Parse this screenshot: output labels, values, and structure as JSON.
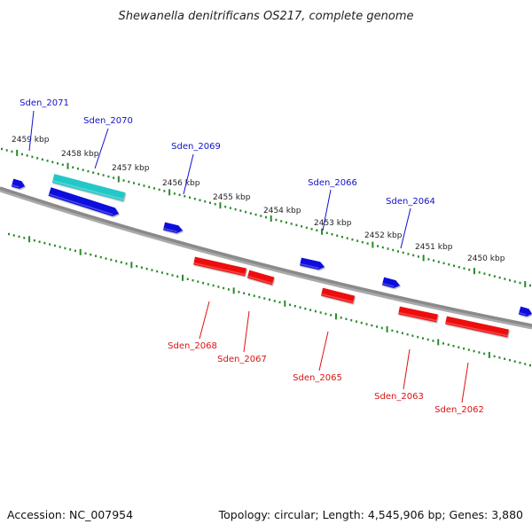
{
  "title": "Shewanella denitrificans OS217, complete genome",
  "accession": "Accession: NC_007954",
  "topology": "Topology: circular; Length: 4,545,906 bp; Genes: 3,880",
  "colors": {
    "backbone": "#808080",
    "tick": "#2a8a2a",
    "forward_gene": "#1010dd",
    "reverse_gene": "#ee1111",
    "highlight_gene": "#22c8c8",
    "forward_label": "#1010cc",
    "reverse_label": "#dd1111",
    "scale_label": "#222222"
  },
  "scale_labels": [
    "2459 kbp",
    "2458 kbp",
    "2457 kbp",
    "2456 kbp",
    "2455 kbp",
    "2454 kbp",
    "2453 kbp",
    "2452 kbp",
    "2451 kbp",
    "2450 kbp"
  ],
  "forward_genes": [
    "Sden_2071",
    "Sden_2070",
    "Sden_2069",
    "Sden_2066",
    "Sden_2064"
  ],
  "reverse_genes": [
    "Sden_2068",
    "Sden_2067",
    "Sden_2065",
    "Sden_2063",
    "Sden_2062"
  ],
  "unlabeled_forward_genes": 1
}
